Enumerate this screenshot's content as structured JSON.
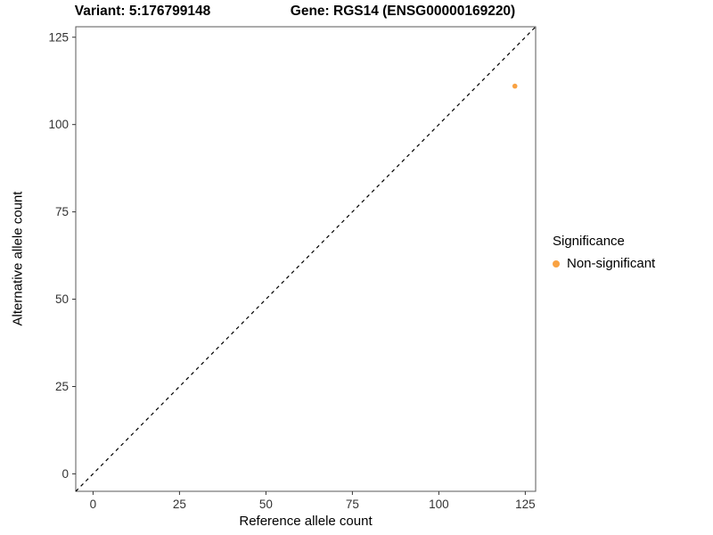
{
  "chart_data": {
    "type": "scatter",
    "title_left": "Variant: 5:176799148",
    "title_right": "Gene: RGS14 (ENSG00000169220)",
    "xlabel": "Reference allele count",
    "ylabel": "Alternative allele count",
    "xlim": [
      -5,
      128
    ],
    "ylim": [
      -5,
      128
    ],
    "xticks": [
      0,
      25,
      50,
      75,
      100,
      125
    ],
    "yticks": [
      0,
      25,
      50,
      75,
      100,
      125
    ],
    "grid": false,
    "panel_border": true,
    "identity_line": {
      "style": "dashed",
      "color": "#000000",
      "from": [
        -5,
        -5
      ],
      "to": [
        128,
        128
      ]
    },
    "points": [
      {
        "x": 122,
        "y": 111,
        "series": "Non-significant",
        "color": "#F9A242",
        "size": 2.8
      }
    ],
    "legend": {
      "title": "Significance",
      "position": "right",
      "entries": [
        {
          "label": "Non-significant",
          "color": "#F9A242",
          "marker": "circle"
        }
      ]
    }
  },
  "colors": {
    "panel_border": "#595959",
    "tick": "#333333",
    "point": "#F9A242",
    "line": "#000000",
    "background": "#ffffff"
  }
}
